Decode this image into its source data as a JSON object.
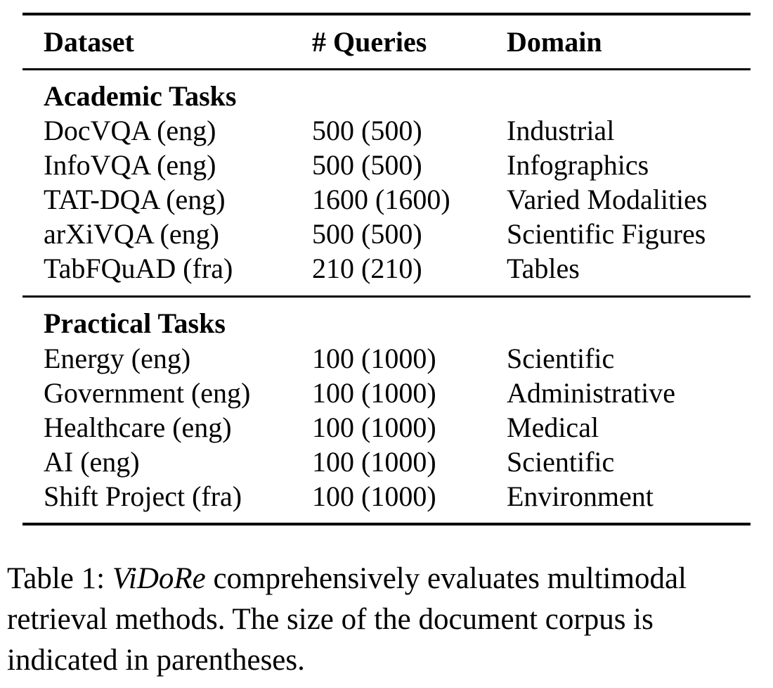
{
  "table": {
    "headers": {
      "dataset": "Dataset",
      "queries": "# Queries",
      "domain": "Domain"
    },
    "sections": [
      {
        "title": "Academic Tasks",
        "rows": [
          {
            "dataset": "DocVQA (eng)",
            "queries": "500 (500)",
            "domain": "Industrial"
          },
          {
            "dataset": "InfoVQA (eng)",
            "queries": "500 (500)",
            "domain": "Infographics"
          },
          {
            "dataset": "TAT-DQA (eng)",
            "queries": "1600 (1600)",
            "domain": "Varied Modalities"
          },
          {
            "dataset": "arXiVQA (eng)",
            "queries": "500 (500)",
            "domain": "Scientific Figures"
          },
          {
            "dataset": "TabFQuAD (fra)",
            "queries": "210 (210)",
            "domain": "Tables"
          }
        ]
      },
      {
        "title": "Practical Tasks",
        "rows": [
          {
            "dataset": "Energy (eng)",
            "queries": "100 (1000)",
            "domain": "Scientific"
          },
          {
            "dataset": "Government (eng)",
            "queries": "100 (1000)",
            "domain": "Administrative"
          },
          {
            "dataset": "Healthcare (eng)",
            "queries": "100 (1000)",
            "domain": "Medical"
          },
          {
            "dataset": "AI (eng)",
            "queries": "100 (1000)",
            "domain": "Scientific"
          },
          {
            "dataset": "Shift Project (fra)",
            "queries": "100 (1000)",
            "domain": "Environment"
          }
        ]
      }
    ]
  },
  "caption": {
    "label": "Table 1: ",
    "emphasis": "ViDoRe",
    "line1_rest": " comprehensively evaluates multimodal",
    "line2": "retrieval methods. The size of the document corpus is",
    "line3": "indicated in parentheses."
  }
}
